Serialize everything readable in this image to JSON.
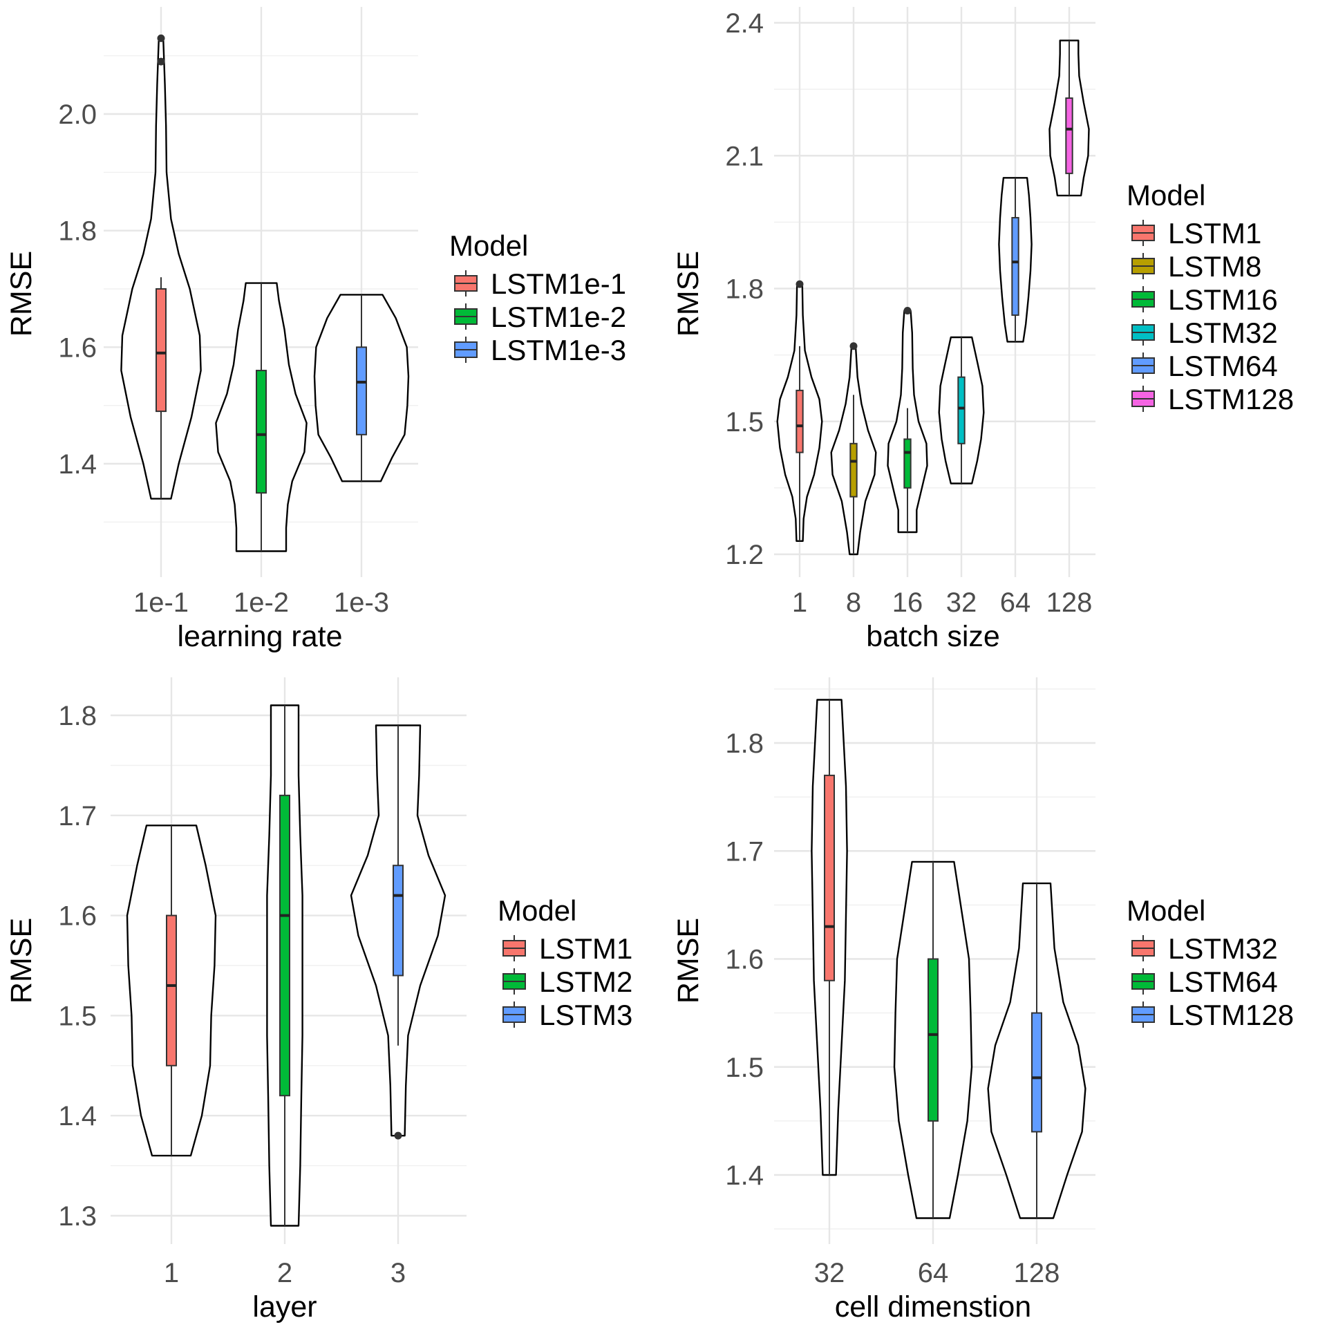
{
  "chart_data": [
    {
      "type": "violin",
      "title": "",
      "xlabel": "learning rate",
      "ylabel": "RMSE",
      "ylim": [
        1.2,
        2.2
      ],
      "yticks": [
        "1.4",
        "1.6",
        "1.8",
        "2.0"
      ],
      "ytick_values": [
        1.4,
        1.6,
        1.8,
        2.0
      ],
      "grid": true,
      "legend": {
        "title": "Model",
        "position": "right"
      },
      "categories": [
        "1e-1",
        "1e-2",
        "1e-3"
      ],
      "series": [
        {
          "name": "LSTM1e-1",
          "color": "#F8766D",
          "min": 1.34,
          "max": 2.13,
          "q1": 1.49,
          "median": 1.59,
          "q3": 1.7,
          "whisker_low": 1.34,
          "whisker_high": 1.72,
          "outliers": [
            2.13,
            2.09
          ],
          "density": [
            [
              1.34,
              0.18
            ],
            [
              1.4,
              0.32
            ],
            [
              1.48,
              0.55
            ],
            [
              1.56,
              0.72
            ],
            [
              1.62,
              0.7
            ],
            [
              1.7,
              0.52
            ],
            [
              1.76,
              0.32
            ],
            [
              1.82,
              0.18
            ],
            [
              1.9,
              0.1
            ],
            [
              1.98,
              0.09
            ],
            [
              2.05,
              0.07
            ],
            [
              2.13,
              0.04
            ]
          ]
        },
        {
          "name": "LSTM1e-2",
          "color": "#00BA38",
          "min": 1.25,
          "max": 1.71,
          "q1": 1.35,
          "median": 1.45,
          "q3": 1.56,
          "whisker_low": 1.25,
          "whisker_high": 1.71,
          "outliers": [],
          "density": [
            [
              1.25,
              0.45
            ],
            [
              1.29,
              0.45
            ],
            [
              1.33,
              0.48
            ],
            [
              1.37,
              0.56
            ],
            [
              1.42,
              0.78
            ],
            [
              1.47,
              0.82
            ],
            [
              1.52,
              0.62
            ],
            [
              1.57,
              0.5
            ],
            [
              1.63,
              0.42
            ],
            [
              1.68,
              0.32
            ],
            [
              1.71,
              0.28
            ]
          ]
        },
        {
          "name": "LSTM1e-3",
          "color": "#619CFF",
          "min": 1.37,
          "max": 1.69,
          "q1": 1.45,
          "median": 1.54,
          "q3": 1.6,
          "whisker_low": 1.37,
          "whisker_high": 1.69,
          "outliers": [],
          "density": [
            [
              1.37,
              0.35
            ],
            [
              1.41,
              0.55
            ],
            [
              1.45,
              0.78
            ],
            [
              1.5,
              0.83
            ],
            [
              1.55,
              0.85
            ],
            [
              1.6,
              0.82
            ],
            [
              1.65,
              0.62
            ],
            [
              1.69,
              0.38
            ]
          ]
        }
      ]
    },
    {
      "type": "violin",
      "title": "",
      "xlabel": "batch size",
      "ylabel": "RMSE",
      "ylim": [
        1.2,
        2.4
      ],
      "yticks": [
        "1.2",
        "1.5",
        "1.8",
        "2.1",
        "2.4"
      ],
      "ytick_values": [
        1.2,
        1.5,
        1.8,
        2.1,
        2.4
      ],
      "grid": true,
      "legend": {
        "title": "Model",
        "position": "right"
      },
      "categories": [
        "1",
        "8",
        "16",
        "32",
        "64",
        "128"
      ],
      "series": [
        {
          "name": "LSTM1",
          "color": "#F8766D",
          "min": 1.23,
          "max": 1.81,
          "q1": 1.43,
          "median": 1.49,
          "q3": 1.57,
          "whisker_low": 1.23,
          "whisker_high": 1.67,
          "outliers": [
            1.81
          ],
          "density": [
            [
              1.23,
              0.12
            ],
            [
              1.28,
              0.15
            ],
            [
              1.33,
              0.28
            ],
            [
              1.38,
              0.55
            ],
            [
              1.44,
              0.75
            ],
            [
              1.5,
              0.85
            ],
            [
              1.55,
              0.75
            ],
            [
              1.6,
              0.45
            ],
            [
              1.66,
              0.2
            ],
            [
              1.74,
              0.12
            ],
            [
              1.81,
              0.1
            ]
          ]
        },
        {
          "name": "LSTM8",
          "color": "#B79F00",
          "min": 1.2,
          "max": 1.67,
          "q1": 1.33,
          "median": 1.41,
          "q3": 1.45,
          "whisker_low": 1.2,
          "whisker_high": 1.56,
          "outliers": [
            1.67
          ],
          "density": [
            [
              1.2,
              0.15
            ],
            [
              1.25,
              0.25
            ],
            [
              1.32,
              0.45
            ],
            [
              1.38,
              0.8
            ],
            [
              1.43,
              0.85
            ],
            [
              1.48,
              0.55
            ],
            [
              1.54,
              0.3
            ],
            [
              1.6,
              0.15
            ],
            [
              1.67,
              0.08
            ]
          ]
        },
        {
          "name": "LSTM16",
          "color": "#00BA38",
          "min": 1.25,
          "max": 1.75,
          "q1": 1.35,
          "median": 1.43,
          "q3": 1.46,
          "whisker_low": 1.25,
          "whisker_high": 1.53,
          "outliers": [
            1.75
          ],
          "density": [
            [
              1.25,
              0.35
            ],
            [
              1.3,
              0.35
            ],
            [
              1.35,
              0.55
            ],
            [
              1.4,
              0.75
            ],
            [
              1.45,
              0.72
            ],
            [
              1.5,
              0.42
            ],
            [
              1.56,
              0.25
            ],
            [
              1.62,
              0.2
            ],
            [
              1.7,
              0.18
            ],
            [
              1.75,
              0.12
            ]
          ]
        },
        {
          "name": "LSTM32",
          "color": "#00BFC4",
          "min": 1.36,
          "max": 1.69,
          "q1": 1.45,
          "median": 1.53,
          "q3": 1.6,
          "whisker_low": 1.36,
          "whisker_high": 1.69,
          "outliers": [],
          "density": [
            [
              1.36,
              0.4
            ],
            [
              1.41,
              0.6
            ],
            [
              1.46,
              0.75
            ],
            [
              1.52,
              0.85
            ],
            [
              1.58,
              0.8
            ],
            [
              1.63,
              0.62
            ],
            [
              1.69,
              0.4
            ]
          ]
        },
        {
          "name": "LSTM64",
          "color": "#619CFF",
          "min": 1.68,
          "max": 2.05,
          "q1": 1.74,
          "median": 1.86,
          "q3": 1.96,
          "whisker_low": 1.68,
          "whisker_high": 2.05,
          "outliers": [],
          "density": [
            [
              1.68,
              0.3
            ],
            [
              1.72,
              0.4
            ],
            [
              1.78,
              0.5
            ],
            [
              1.84,
              0.58
            ],
            [
              1.9,
              0.62
            ],
            [
              1.96,
              0.58
            ],
            [
              2.01,
              0.52
            ],
            [
              2.05,
              0.45
            ]
          ]
        },
        {
          "name": "LSTM128",
          "color": "#F564E3",
          "min": 2.01,
          "max": 2.36,
          "q1": 2.06,
          "median": 2.16,
          "q3": 2.23,
          "whisker_low": 2.01,
          "whisker_high": 2.36,
          "outliers": [],
          "density": [
            [
              2.01,
              0.45
            ],
            [
              2.05,
              0.55
            ],
            [
              2.1,
              0.72
            ],
            [
              2.16,
              0.75
            ],
            [
              2.22,
              0.55
            ],
            [
              2.28,
              0.38
            ],
            [
              2.33,
              0.35
            ],
            [
              2.36,
              0.35
            ]
          ]
        }
      ]
    },
    {
      "type": "violin",
      "title": "",
      "xlabel": "layer",
      "ylabel": "RMSE",
      "ylim": [
        1.25,
        1.85
      ],
      "yticks": [
        "1.3",
        "1.4",
        "1.5",
        "1.6",
        "1.7",
        "1.8"
      ],
      "ytick_values": [
        1.3,
        1.4,
        1.5,
        1.6,
        1.7,
        1.8
      ],
      "grid": true,
      "legend": {
        "title": "Model",
        "position": "right"
      },
      "categories": [
        "1",
        "2",
        "3"
      ],
      "series": [
        {
          "name": "LSTM1",
          "color": "#F8766D",
          "min": 1.36,
          "max": 1.69,
          "q1": 1.45,
          "median": 1.53,
          "q3": 1.6,
          "whisker_low": 1.36,
          "whisker_high": 1.69,
          "outliers": [],
          "density": [
            [
              1.36,
              0.35
            ],
            [
              1.4,
              0.55
            ],
            [
              1.45,
              0.7
            ],
            [
              1.5,
              0.72
            ],
            [
              1.55,
              0.78
            ],
            [
              1.6,
              0.8
            ],
            [
              1.65,
              0.62
            ],
            [
              1.69,
              0.45
            ]
          ]
        },
        {
          "name": "LSTM2",
          "color": "#00BA38",
          "min": 1.29,
          "max": 1.81,
          "q1": 1.42,
          "median": 1.6,
          "q3": 1.72,
          "whisker_low": 1.29,
          "whisker_high": 1.81,
          "outliers": [],
          "density": [
            [
              1.29,
              0.25
            ],
            [
              1.35,
              0.28
            ],
            [
              1.42,
              0.3
            ],
            [
              1.48,
              0.32
            ],
            [
              1.55,
              0.32
            ],
            [
              1.62,
              0.32
            ],
            [
              1.68,
              0.28
            ],
            [
              1.74,
              0.25
            ],
            [
              1.81,
              0.25
            ]
          ]
        },
        {
          "name": "LSTM3",
          "color": "#619CFF",
          "min": 1.38,
          "max": 1.79,
          "q1": 1.54,
          "median": 1.62,
          "q3": 1.65,
          "whisker_low": 1.47,
          "whisker_high": 1.79,
          "outliers": [
            1.38
          ],
          "density": [
            [
              1.38,
              0.12
            ],
            [
              1.43,
              0.14
            ],
            [
              1.48,
              0.18
            ],
            [
              1.53,
              0.4
            ],
            [
              1.58,
              0.72
            ],
            [
              1.62,
              0.85
            ],
            [
              1.66,
              0.55
            ],
            [
              1.7,
              0.35
            ],
            [
              1.74,
              0.38
            ],
            [
              1.79,
              0.4
            ]
          ]
        }
      ]
    },
    {
      "type": "violin",
      "title": "",
      "xlabel": "cell dimenstion",
      "ylabel": "RMSE",
      "ylim": [
        1.33,
        1.86
      ],
      "yticks": [
        "1.4",
        "1.5",
        "1.6",
        "1.7",
        "1.8"
      ],
      "ytick_values": [
        1.4,
        1.5,
        1.6,
        1.7,
        1.8
      ],
      "grid": true,
      "legend": {
        "title": "Model",
        "position": "right"
      },
      "categories": [
        "32",
        "64",
        "128"
      ],
      "series": [
        {
          "name": "LSTM32",
          "color": "#F8766D",
          "min": 1.4,
          "max": 1.84,
          "q1": 1.58,
          "median": 1.63,
          "q3": 1.77,
          "whisker_low": 1.4,
          "whisker_high": 1.84,
          "outliers": [],
          "density": [
            [
              1.4,
              0.12
            ],
            [
              1.46,
              0.16
            ],
            [
              1.52,
              0.22
            ],
            [
              1.58,
              0.28
            ],
            [
              1.64,
              0.3
            ],
            [
              1.7,
              0.32
            ],
            [
              1.76,
              0.3
            ],
            [
              1.84,
              0.22
            ]
          ]
        },
        {
          "name": "LSTM64",
          "color": "#00BA38",
          "min": 1.36,
          "max": 1.69,
          "q1": 1.45,
          "median": 1.53,
          "q3": 1.6,
          "whisker_low": 1.36,
          "whisker_high": 1.69,
          "outliers": [],
          "density": [
            [
              1.36,
              0.3
            ],
            [
              1.4,
              0.45
            ],
            [
              1.45,
              0.62
            ],
            [
              1.5,
              0.7
            ],
            [
              1.55,
              0.68
            ],
            [
              1.6,
              0.65
            ],
            [
              1.65,
              0.5
            ],
            [
              1.69,
              0.38
            ]
          ]
        },
        {
          "name": "LSTM128",
          "color": "#619CFF",
          "min": 1.36,
          "max": 1.67,
          "q1": 1.44,
          "median": 1.49,
          "q3": 1.55,
          "whisker_low": 1.36,
          "whisker_high": 1.67,
          "outliers": [],
          "density": [
            [
              1.36,
              0.3
            ],
            [
              1.4,
              0.55
            ],
            [
              1.44,
              0.82
            ],
            [
              1.48,
              0.88
            ],
            [
              1.52,
              0.75
            ],
            [
              1.56,
              0.48
            ],
            [
              1.61,
              0.32
            ],
            [
              1.67,
              0.25
            ]
          ]
        }
      ]
    }
  ]
}
